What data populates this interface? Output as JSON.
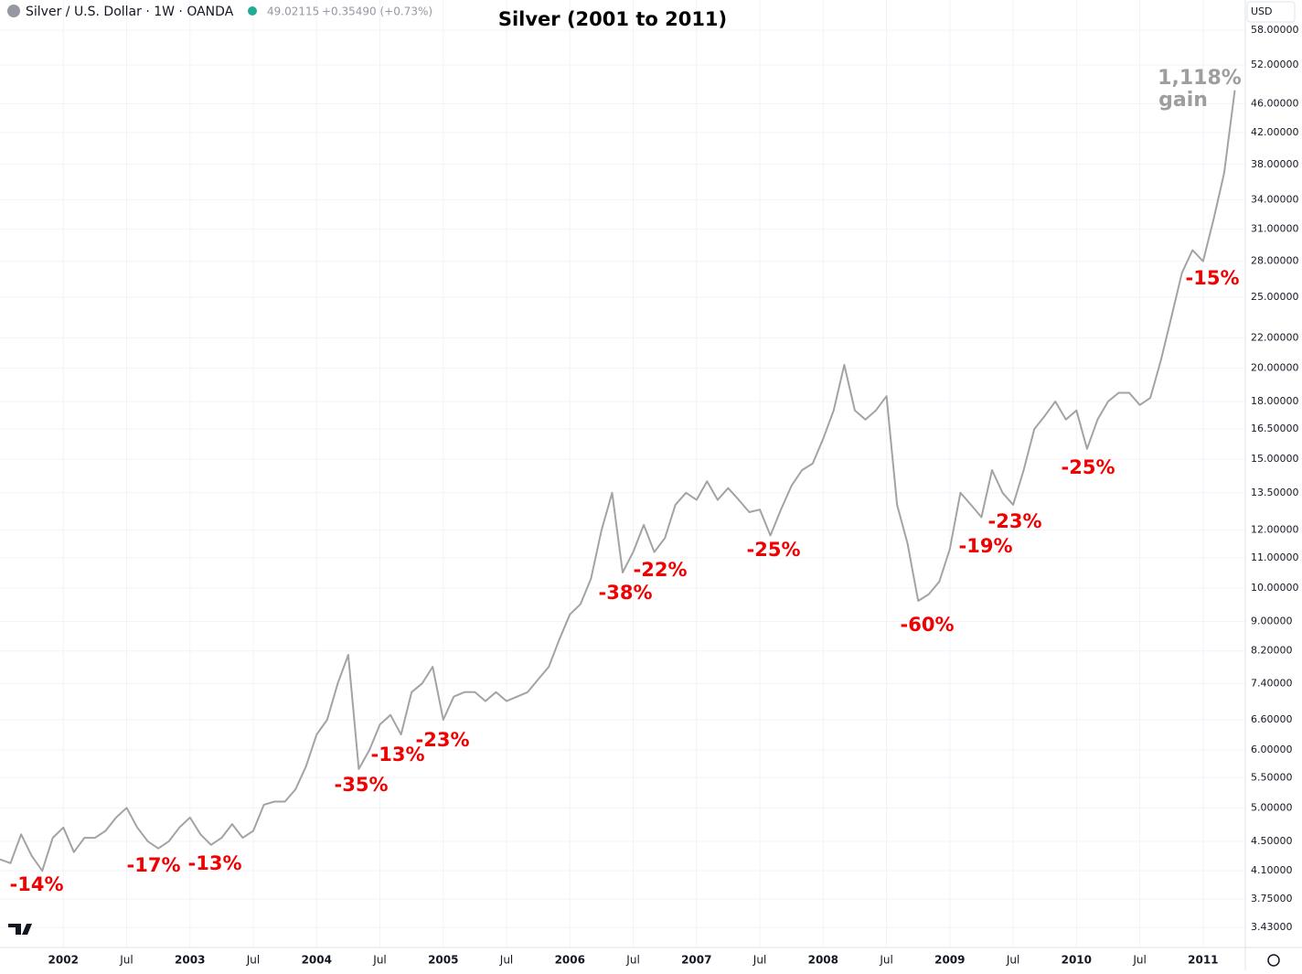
{
  "header": {
    "symbol": "Silver / U.S. Dollar · 1W · OANDA",
    "price": "49.02115",
    "change": "+0.35490 (+0.73%)",
    "currency": "USD"
  },
  "chart_data": {
    "type": "line",
    "title": "Silver (2001 to 2011)",
    "color": "#a3a3a3",
    "log_scale": true,
    "grid": true,
    "x": [
      "2001-07",
      "2001-08",
      "2001-09",
      "2001-10",
      "2001-11",
      "2001-12",
      "2002-01",
      "2002-02",
      "2002-03",
      "2002-04",
      "2002-05",
      "2002-06",
      "2002-07",
      "2002-08",
      "2002-09",
      "2002-10",
      "2002-11",
      "2002-12",
      "2003-01",
      "2003-02",
      "2003-03",
      "2003-04",
      "2003-05",
      "2003-06",
      "2003-07",
      "2003-08",
      "2003-09",
      "2003-10",
      "2003-11",
      "2003-12",
      "2004-01",
      "2004-02",
      "2004-03",
      "2004-04",
      "2004-05",
      "2004-06",
      "2004-07",
      "2004-08",
      "2004-09",
      "2004-10",
      "2004-11",
      "2004-12",
      "2005-01",
      "2005-02",
      "2005-03",
      "2005-04",
      "2005-05",
      "2005-06",
      "2005-07",
      "2005-08",
      "2005-09",
      "2005-10",
      "2005-11",
      "2005-12",
      "2006-01",
      "2006-02",
      "2006-03",
      "2006-04",
      "2006-05",
      "2006-06",
      "2006-07",
      "2006-08",
      "2006-09",
      "2006-10",
      "2006-11",
      "2006-12",
      "2007-01",
      "2007-02",
      "2007-03",
      "2007-04",
      "2007-05",
      "2007-06",
      "2007-07",
      "2007-08",
      "2007-09",
      "2007-10",
      "2007-11",
      "2007-12",
      "2008-01",
      "2008-02",
      "2008-03",
      "2008-04",
      "2008-05",
      "2008-06",
      "2008-07",
      "2008-08",
      "2008-09",
      "2008-10",
      "2008-11",
      "2008-12",
      "2009-01",
      "2009-02",
      "2009-03",
      "2009-04",
      "2009-05",
      "2009-06",
      "2009-07",
      "2009-08",
      "2009-09",
      "2009-10",
      "2009-11",
      "2009-12",
      "2010-01",
      "2010-02",
      "2010-03",
      "2010-04",
      "2010-05",
      "2010-06",
      "2010-07",
      "2010-08",
      "2010-09",
      "2010-10",
      "2010-11",
      "2010-12",
      "2011-01",
      "2011-02",
      "2011-03",
      "2011-04"
    ],
    "values": [
      4.25,
      4.2,
      4.6,
      4.3,
      4.1,
      4.55,
      4.7,
      4.35,
      4.55,
      4.55,
      4.65,
      4.85,
      5.0,
      4.7,
      4.5,
      4.4,
      4.5,
      4.7,
      4.85,
      4.6,
      4.45,
      4.55,
      4.75,
      4.55,
      4.65,
      5.05,
      5.1,
      5.1,
      5.3,
      5.7,
      6.3,
      6.6,
      7.4,
      8.1,
      5.65,
      6.0,
      6.5,
      6.7,
      6.3,
      7.2,
      7.4,
      7.8,
      6.6,
      7.1,
      7.2,
      7.2,
      7.0,
      7.2,
      7.0,
      7.1,
      7.2,
      7.5,
      7.8,
      8.5,
      9.2,
      9.5,
      10.3,
      12.0,
      13.5,
      10.5,
      11.2,
      12.2,
      11.2,
      11.7,
      13.0,
      13.5,
      13.2,
      14.0,
      13.2,
      13.7,
      13.2,
      12.7,
      12.8,
      11.8,
      12.8,
      13.8,
      14.5,
      14.8,
      16.0,
      17.5,
      20.2,
      17.5,
      17.0,
      17.5,
      18.3,
      13.0,
      11.5,
      9.6,
      9.8,
      10.2,
      11.3,
      13.5,
      13.0,
      12.5,
      14.5,
      13.5,
      13.0,
      14.5,
      16.5,
      17.2,
      18.0,
      17.0,
      17.5,
      15.5,
      17.0,
      18.0,
      18.5,
      18.5,
      17.8,
      18.2,
      20.5,
      23.5,
      27.0,
      29.0,
      28.0,
      32.0,
      37.0,
      48.0
    ],
    "xlim": [
      "2001-07",
      "2011-05"
    ],
    "xticks": [
      {
        "value": "2002-01",
        "label": "2002"
      },
      {
        "value": "2002-07",
        "label": "Jul"
      },
      {
        "value": "2003-01",
        "label": "2003"
      },
      {
        "value": "2003-07",
        "label": "Jul"
      },
      {
        "value": "2004-01",
        "label": "2004"
      },
      {
        "value": "2004-07",
        "label": "Jul"
      },
      {
        "value": "2005-01",
        "label": "2005"
      },
      {
        "value": "2005-07",
        "label": "Jul"
      },
      {
        "value": "2006-01",
        "label": "2006"
      },
      {
        "value": "2006-07",
        "label": "Jul"
      },
      {
        "value": "2007-01",
        "label": "2007"
      },
      {
        "value": "2007-07",
        "label": "Jul"
      },
      {
        "value": "2008-01",
        "label": "2008"
      },
      {
        "value": "2008-07",
        "label": "Jul"
      },
      {
        "value": "2009-01",
        "label": "2009"
      },
      {
        "value": "2009-07",
        "label": "Jul"
      },
      {
        "value": "2010-01",
        "label": "2010"
      },
      {
        "value": "2010-07",
        "label": "Jul"
      },
      {
        "value": "2011-01",
        "label": "2011"
      }
    ],
    "ylim": [
      3.22,
      63.8
    ],
    "yticks": [
      {
        "value": 3.43,
        "label": "3.43000"
      },
      {
        "value": 3.75,
        "label": "3.75000"
      },
      {
        "value": 4.1,
        "label": "4.10000"
      },
      {
        "value": 4.5,
        "label": "4.50000"
      },
      {
        "value": 5,
        "label": "5.00000"
      },
      {
        "value": 5.5,
        "label": "5.50000"
      },
      {
        "value": 6,
        "label": "6.00000"
      },
      {
        "value": 6.6,
        "label": "6.60000"
      },
      {
        "value": 7.4,
        "label": "7.40000"
      },
      {
        "value": 8.2,
        "label": "8.20000"
      },
      {
        "value": 9,
        "label": "9.00000"
      },
      {
        "value": 10,
        "label": "10.00000"
      },
      {
        "value": 11,
        "label": "11.00000"
      },
      {
        "value": 12,
        "label": "12.00000"
      },
      {
        "value": 13.5,
        "label": "13.50000"
      },
      {
        "value": 15,
        "label": "15.00000"
      },
      {
        "value": 16.5,
        "label": "16.50000"
      },
      {
        "value": 18,
        "label": "18.00000"
      },
      {
        "value": 20,
        "label": "20.00000"
      },
      {
        "value": 22,
        "label": "22.00000"
      },
      {
        "value": 25,
        "label": "25.00000"
      },
      {
        "value": 28,
        "label": "28.00000"
      },
      {
        "value": 31,
        "label": "31.00000"
      },
      {
        "value": 34,
        "label": "34.00000"
      },
      {
        "value": 38,
        "label": "38.00000"
      },
      {
        "value": 42,
        "label": "42.00000"
      },
      {
        "value": 46,
        "label": "46.00000"
      },
      {
        "value": 52,
        "label": "52.00000"
      },
      {
        "value": 58,
        "label": "58.00000"
      }
    ],
    "annotations": [
      "-14%",
      "-17%",
      "-13%",
      "-35%",
      "-13%",
      "-23%",
      "-38%",
      "-22%",
      "-25%",
      "-60%",
      "-19%",
      "-23%",
      "-25%",
      "-15%"
    ],
    "gain_annotation": [
      "1,118%",
      "gain"
    ]
  }
}
